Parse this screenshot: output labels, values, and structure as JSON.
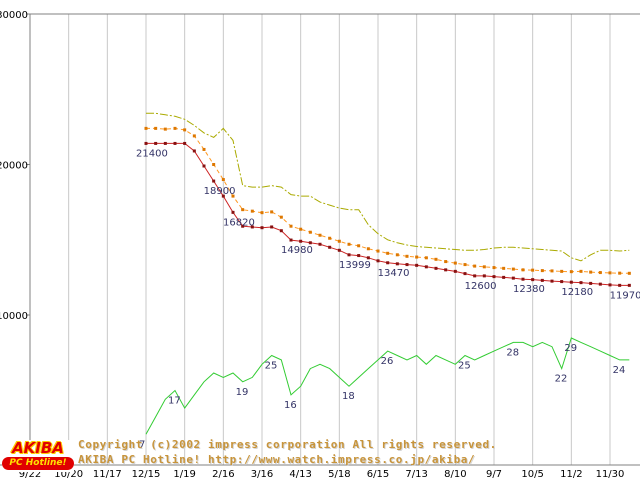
{
  "watermark": {
    "copyright": "Copyright (c)2002 impress corporation All rights reserved.",
    "site": "AKIBA PC Hotline! http://www.watch.impress.co.jp/akiba/"
  },
  "logo": {
    "title": "AKIBA",
    "subtitle": "PC Hotline!"
  },
  "chart_data": {
    "type": "line",
    "title": "",
    "description": "Weekly price survey: highest / average / lowest price (yen, top) and number of shops (bottom green line)",
    "grid": "vertical-only",
    "legend": "none",
    "x_axis": {
      "tick_labels": [
        "9/22",
        "10/20",
        "11/17",
        "12/15",
        "1/19",
        "2/16",
        "3/16",
        "4/13",
        "5/18",
        "6/15",
        "7/13",
        "8/10",
        "9/7",
        "10/5",
        "11/2",
        "11/30"
      ],
      "ticks_every_n_points": 4,
      "total_weeks": 62
    },
    "y_axis_price": {
      "tick_labels": [
        "30000",
        "20000",
        "10000"
      ],
      "ticks": [
        30000,
        20000,
        10000
      ],
      "range": [
        10000,
        30000
      ]
    },
    "colors": {
      "highest": "#aaaa00",
      "average": "#ff9922",
      "average_marker": "#dd7700",
      "lowest": "#cc2222",
      "lowest_marker": "#881111",
      "count": "#33cc33",
      "label_text": "#333366",
      "grid": "#c8c8c8",
      "axis": "#808080",
      "tick_text": "#000000"
    },
    "series": [
      {
        "name": "highest-price",
        "color": "#aaaa00",
        "style": "dashdot",
        "start_week": 12,
        "values": [
          23400,
          23400,
          23300,
          23200,
          23000,
          22600,
          22100,
          21800,
          22400,
          21600,
          18600,
          18500,
          18500,
          18600,
          18500,
          18000,
          17900,
          17900,
          17500,
          17300,
          17100,
          17000,
          17000,
          16000,
          15400,
          15000,
          14800,
          14650,
          14550,
          14500,
          14450,
          14400,
          14350,
          14300,
          14300,
          14350,
          14450,
          14500,
          14500,
          14450,
          14400,
          14350,
          14300,
          14250,
          13800,
          13600,
          14000,
          14300,
          14300,
          14250,
          14300
        ]
      },
      {
        "name": "average-price",
        "color": "#ff9922",
        "marker": true,
        "marker_color": "#dd7700",
        "style": "dashed",
        "start_week": 12,
        "values": [
          22400,
          22400,
          22350,
          22400,
          22300,
          21900,
          21000,
          20000,
          19000,
          17900,
          17000,
          16900,
          16800,
          16850,
          16500,
          15900,
          15700,
          15500,
          15300,
          15100,
          14900,
          14700,
          14600,
          14400,
          14250,
          14100,
          14000,
          13900,
          13850,
          13800,
          13700,
          13550,
          13450,
          13350,
          13250,
          13200,
          13150,
          13100,
          13050,
          13000,
          12980,
          12950,
          12930,
          12900,
          12880,
          12900,
          12850,
          12820,
          12800,
          12780,
          12770
        ]
      },
      {
        "name": "lowest-price",
        "color": "#cc2222",
        "marker": true,
        "marker_color": "#881111",
        "style": "solid",
        "start_week": 12,
        "label_dx": -10,
        "label_dy": 13,
        "values": [
          21400,
          21400,
          21400,
          21400,
          21400,
          20900,
          19900,
          18900,
          17900,
          16820,
          15900,
          15850,
          15800,
          15850,
          15600,
          14980,
          14900,
          14800,
          14700,
          14500,
          14300,
          13999,
          13950,
          13800,
          13600,
          13470,
          13400,
          13350,
          13300,
          13200,
          13100,
          13000,
          12900,
          12750,
          12600,
          12600,
          12550,
          12500,
          12450,
          12380,
          12350,
          12300,
          12250,
          12220,
          12180,
          12150,
          12100,
          12050,
          12000,
          11970,
          11970
        ],
        "labels": [
          {
            "week": 12,
            "text": "21400"
          },
          {
            "week": 19,
            "text": "18900"
          },
          {
            "week": 21,
            "text": "16820"
          },
          {
            "week": 27,
            "text": "14980"
          },
          {
            "week": 33,
            "text": "13999"
          },
          {
            "week": 37,
            "text": "13470"
          },
          {
            "week": 46,
            "text": "12600"
          },
          {
            "week": 51,
            "text": "12380"
          },
          {
            "week": 56,
            "text": "12180"
          },
          {
            "week": 61,
            "text": "11970"
          }
        ]
      },
      {
        "name": "shop-count",
        "color": "#33cc33",
        "style": "solid",
        "axis": "count",
        "start_week": 12,
        "label_dx": -7,
        "label_dy": 13,
        "values": [
          7,
          11,
          15,
          17,
          13,
          16,
          19,
          21,
          20,
          21,
          19,
          20,
          23,
          25,
          24,
          16,
          18,
          22,
          23,
          22,
          20,
          18,
          20,
          22,
          24,
          26,
          25,
          24,
          25,
          23,
          25,
          24,
          23,
          25,
          24,
          25,
          26,
          27,
          28,
          28,
          27,
          28,
          27,
          22,
          29,
          28,
          27,
          26,
          25,
          24,
          24
        ],
        "labels": [
          {
            "week": 12,
            "text": "7"
          },
          {
            "week": 15,
            "text": "17"
          },
          {
            "week": 22,
            "text": "19"
          },
          {
            "week": 25,
            "text": "25"
          },
          {
            "week": 27,
            "text": "16"
          },
          {
            "week": 33,
            "text": "18"
          },
          {
            "week": 37,
            "text": "26"
          },
          {
            "week": 45,
            "text": "25"
          },
          {
            "week": 50,
            "text": "28"
          },
          {
            "week": 55,
            "text": "22"
          },
          {
            "week": 56,
            "text": "29"
          },
          {
            "week": 61,
            "text": "24"
          }
        ]
      }
    ]
  }
}
